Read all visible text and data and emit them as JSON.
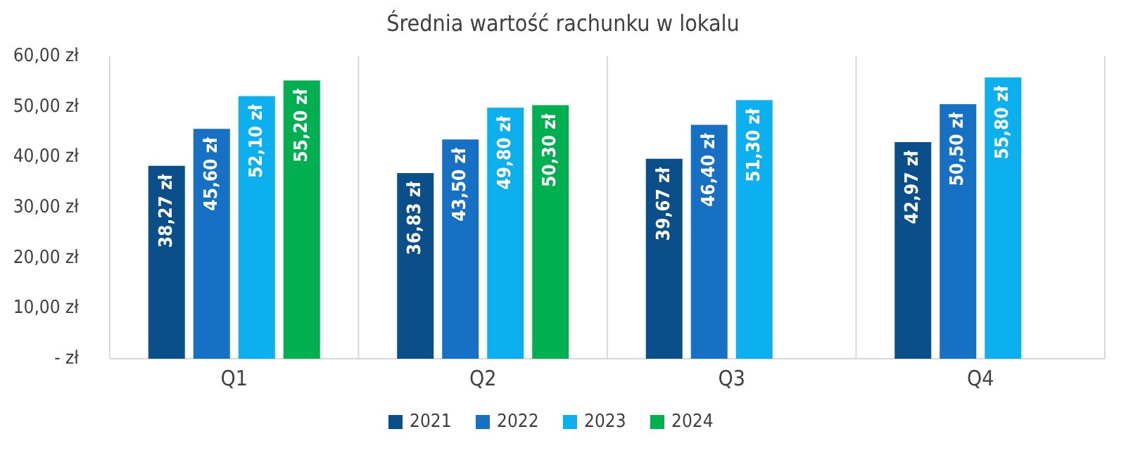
{
  "chart_data": {
    "type": "bar",
    "title": "Średnia wartość rachunku w lokalu",
    "categories": [
      "Q1",
      "Q2",
      "Q3",
      "Q4"
    ],
    "series": [
      {
        "name": "2021",
        "color": "#0b4f8a",
        "values": [
          38.27,
          36.83,
          39.67,
          42.97
        ],
        "value_labels": [
          "38,27 zł",
          "36,83 zł",
          "39,67 zł",
          "42,97 zł"
        ]
      },
      {
        "name": "2022",
        "color": "#1670c4",
        "values": [
          45.6,
          43.5,
          46.4,
          50.5
        ],
        "value_labels": [
          "45,60 zł",
          "43,50 zł",
          "46,40 zł",
          "50,50 zł"
        ]
      },
      {
        "name": "2023",
        "color": "#0db0ef",
        "values": [
          52.1,
          49.8,
          51.3,
          55.8
        ],
        "value_labels": [
          "52,10 zł",
          "49,80 zł",
          "51,30 zł",
          "55,80 zł"
        ]
      },
      {
        "name": "2024",
        "color": "#00b050",
        "values": [
          55.2,
          50.3,
          null,
          null
        ],
        "value_labels": [
          "55,20 zł",
          "50,30 zł",
          null,
          null
        ]
      }
    ],
    "ylim": [
      0,
      60
    ],
    "yticks": [
      {
        "value": 0,
        "label": "-   zł"
      },
      {
        "value": 10,
        "label": "10,00 zł"
      },
      {
        "value": 20,
        "label": "20,00 zł"
      },
      {
        "value": 30,
        "label": "30,00 zł"
      },
      {
        "value": 40,
        "label": "40,00 zł"
      },
      {
        "value": 50,
        "label": "50,00 zł"
      },
      {
        "value": 60,
        "label": "60,00 zł"
      }
    ],
    "grid": "x",
    "legend": "bottom"
  }
}
